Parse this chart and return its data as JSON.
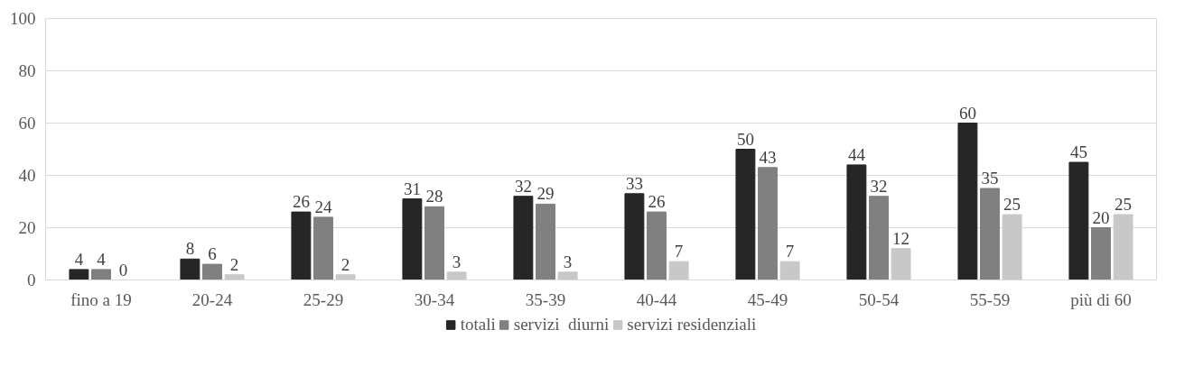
{
  "chart_data": {
    "type": "bar",
    "categories": [
      "fino a 19",
      "20-24",
      "25-29",
      "30-34",
      "35-39",
      "40-44",
      "45-49",
      "50-54",
      "55-59",
      "più di 60"
    ],
    "series": [
      {
        "name": "totali",
        "color": "#262626",
        "values": [
          4,
          8,
          26,
          31,
          32,
          33,
          50,
          44,
          60,
          45
        ]
      },
      {
        "name": "servizi  diurni",
        "color": "#808080",
        "values": [
          4,
          6,
          24,
          28,
          29,
          26,
          43,
          32,
          35,
          20
        ]
      },
      {
        "name": "servizi residenziali",
        "color": "#c8c8c8",
        "values": [
          0,
          2,
          2,
          3,
          3,
          7,
          7,
          12,
          25,
          25
        ]
      }
    ],
    "ylim": [
      0,
      100
    ],
    "yticks": [
      0,
      20,
      40,
      60,
      80,
      100
    ],
    "grid": "y",
    "legend": "bottom",
    "data_labels": true
  }
}
